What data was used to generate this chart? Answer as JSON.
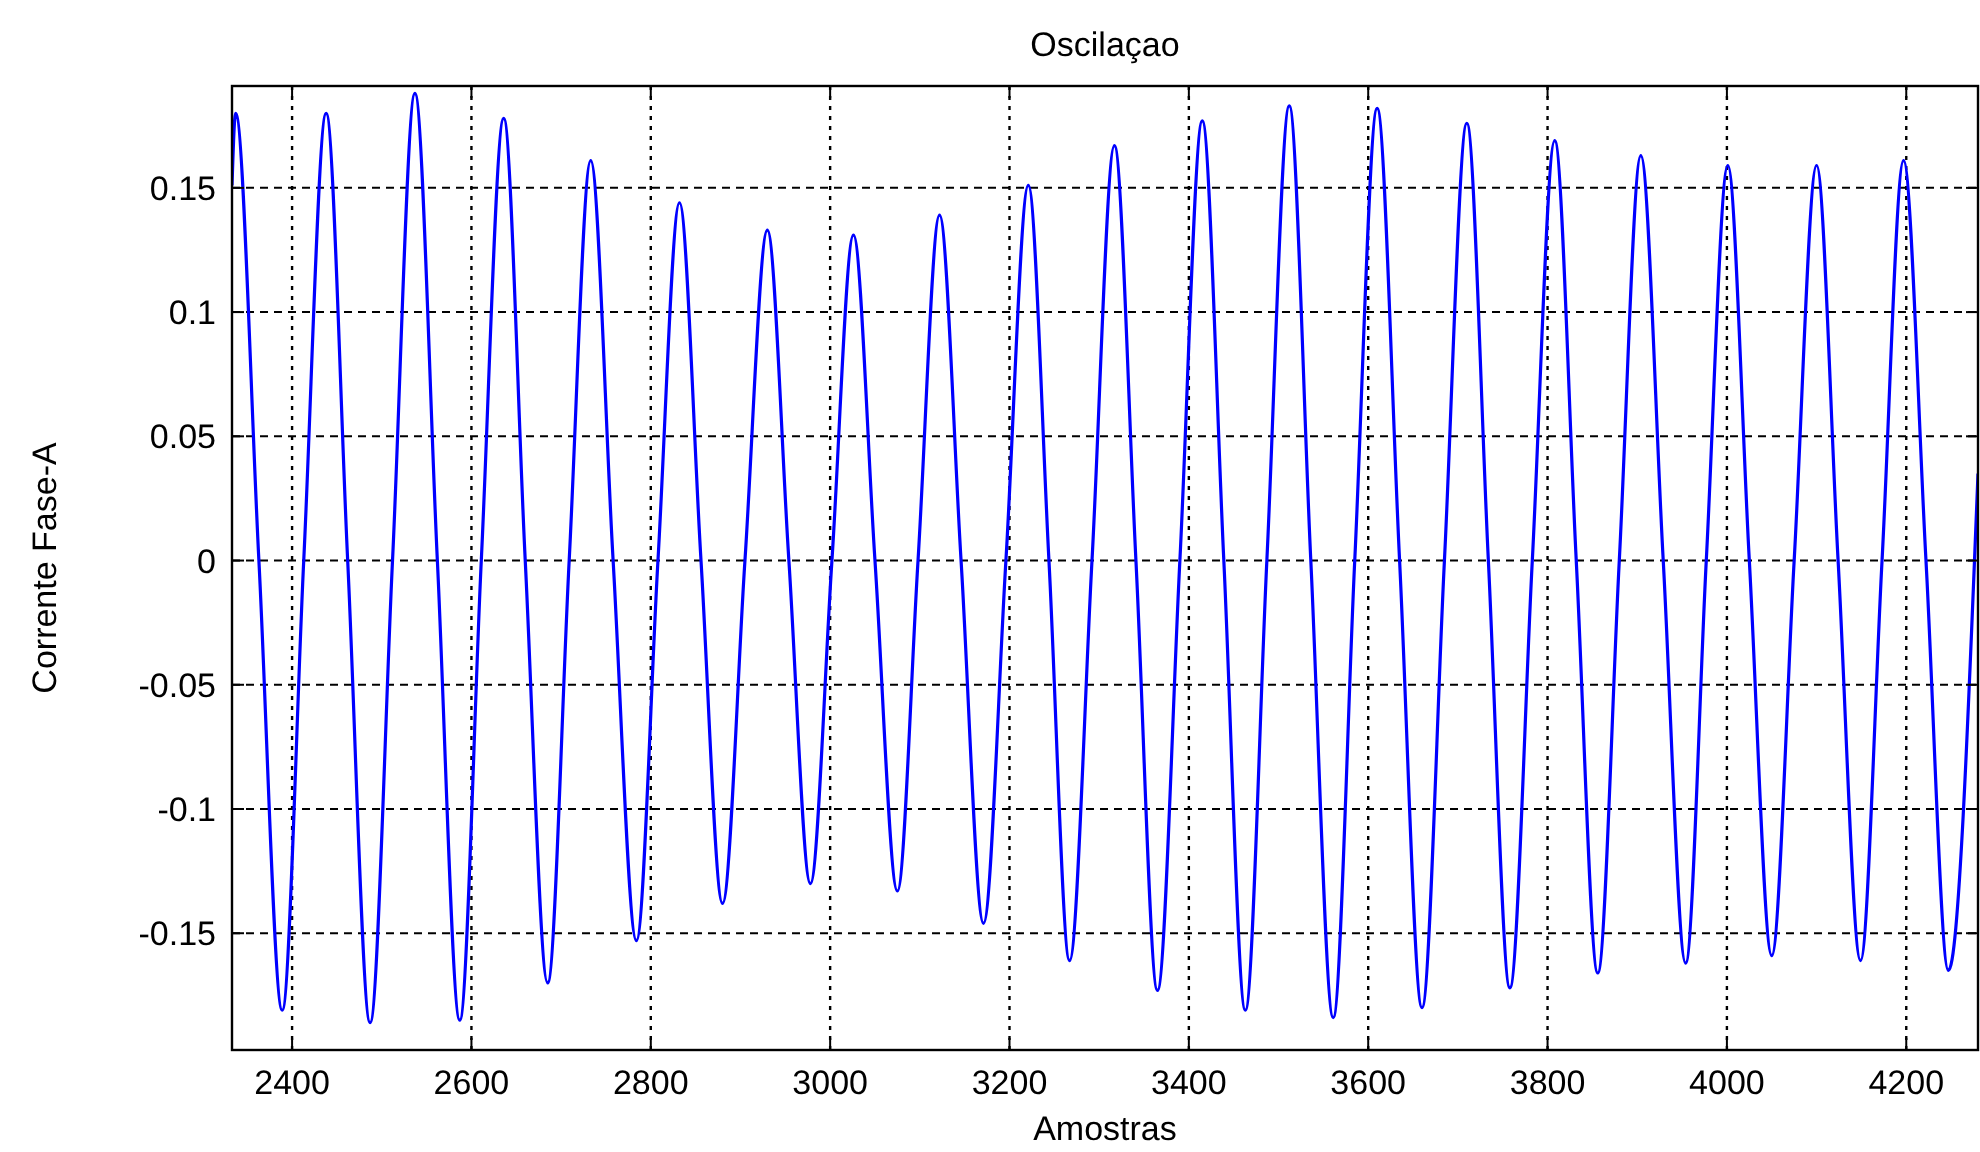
{
  "chart_data": {
    "type": "line",
    "title": "Oscilaçao",
    "xlabel": "Amostras",
    "ylabel": "Corrente Fase-A",
    "xlim": [
      2333,
      4280
    ],
    "ylim": [
      -0.197,
      0.191
    ],
    "xticks": [
      2400,
      2600,
      2800,
      3000,
      3200,
      3400,
      3600,
      3800,
      4000,
      4200
    ],
    "yticks": [
      -0.15,
      -0.1,
      -0.05,
      0,
      0.05,
      0.1,
      0.15
    ],
    "grid": true,
    "line_style": "solid",
    "marker": "none",
    "x": [
      2333,
      2337,
      2363,
      2389,
      2413,
      2438,
      2462,
      2487,
      2512,
      2537,
      2562,
      2587,
      2611,
      2636,
      2660,
      2685,
      2709,
      2733,
      2758,
      2784,
      2808,
      2832,
      2856,
      2880,
      2905,
      2930,
      2954,
      2978,
      3002,
      3026,
      3050,
      3075,
      3098,
      3122,
      3146,
      3171,
      3196,
      3221,
      3244,
      3267,
      3292,
      3317,
      3341,
      3365,
      3390,
      3415,
      3439,
      3463,
      3487,
      3512,
      3536,
      3561,
      3585,
      3610,
      3635,
      3660,
      3685,
      3710,
      3734,
      3758,
      3783,
      3808,
      3832,
      3856,
      3880,
      3904,
      3929,
      3954,
      3977,
      4001,
      4025,
      4050,
      4075,
      4100,
      4124,
      4149,
      4173,
      4197,
      4222,
      4247,
      4280
    ],
    "series": [
      {
        "color": "#0000ff",
        "values": [
          0.151,
          0.18,
          0,
          -0.181,
          0,
          0.18,
          0,
          -0.186,
          0,
          0.188,
          0,
          -0.185,
          0,
          0.178,
          0,
          -0.17,
          0,
          0.161,
          0,
          -0.153,
          0,
          0.144,
          0,
          -0.138,
          0,
          0.133,
          0,
          -0.13,
          0,
          0.131,
          0,
          -0.133,
          0,
          0.139,
          0,
          -0.146,
          0,
          0.151,
          0,
          -0.161,
          0,
          0.167,
          0,
          -0.173,
          0,
          0.177,
          0,
          -0.181,
          0,
          0.183,
          0,
          -0.184,
          0,
          0.182,
          0,
          -0.18,
          0,
          0.176,
          0,
          -0.172,
          0,
          0.169,
          0,
          -0.166,
          0,
          0.163,
          0,
          -0.162,
          0,
          0.159,
          0,
          -0.159,
          0,
          0.159,
          0,
          -0.161,
          0,
          0.161,
          0,
          -0.165,
          0.035
        ]
      }
    ]
  }
}
